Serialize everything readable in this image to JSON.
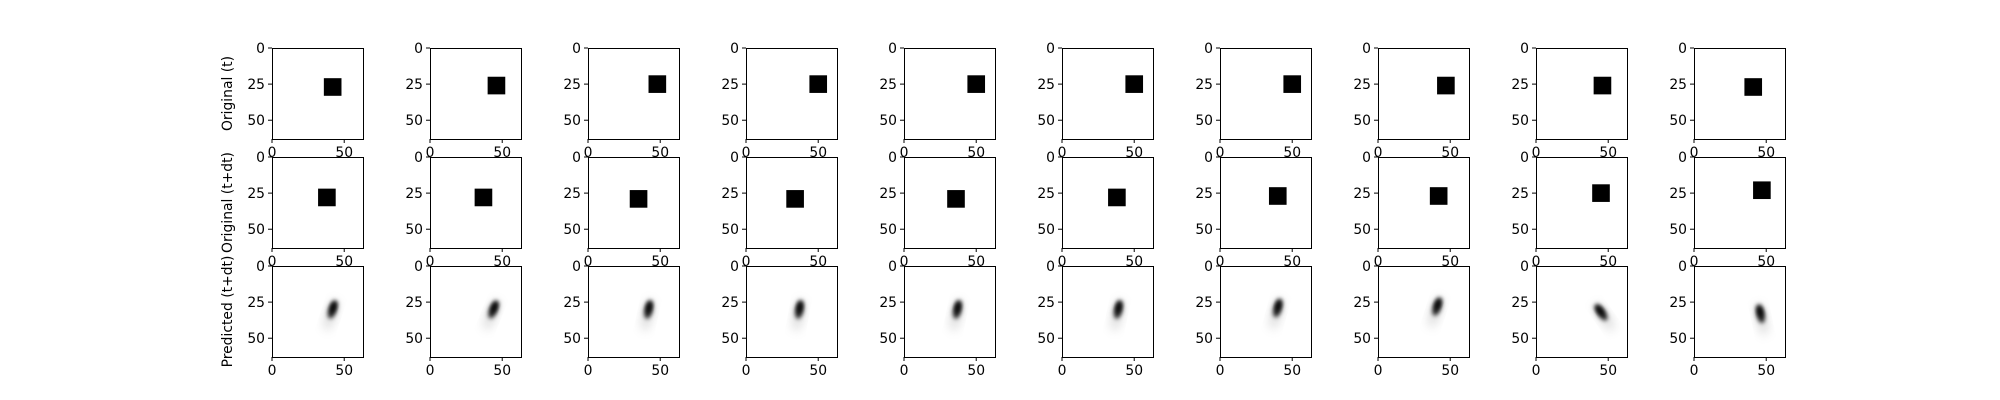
{
  "chart_data": {
    "type": "image-grid",
    "image_size": [
      64,
      64
    ],
    "colormap": "gray_r",
    "grid": false,
    "xlim": [
      0,
      63
    ],
    "ylim": [
      63,
      0
    ],
    "xticks": [
      0,
      50
    ],
    "yticks": [
      0,
      25,
      50
    ],
    "rows": [
      {
        "name": "Original (t)",
        "kind": "square",
        "frames": [
          {
            "x": 42,
            "y": 27
          },
          {
            "x": 46,
            "y": 26
          },
          {
            "x": 48,
            "y": 25
          },
          {
            "x": 50,
            "y": 25
          },
          {
            "x": 50,
            "y": 25
          },
          {
            "x": 50,
            "y": 25
          },
          {
            "x": 50,
            "y": 25
          },
          {
            "x": 47,
            "y": 26
          },
          {
            "x": 46,
            "y": 26
          },
          {
            "x": 41,
            "y": 27
          }
        ]
      },
      {
        "name": "Original (t+dt)",
        "kind": "square",
        "frames": [
          {
            "x": 38,
            "y": 28
          },
          {
            "x": 37,
            "y": 28
          },
          {
            "x": 35,
            "y": 29
          },
          {
            "x": 34,
            "y": 29
          },
          {
            "x": 36,
            "y": 29
          },
          {
            "x": 38,
            "y": 28
          },
          {
            "x": 40,
            "y": 27
          },
          {
            "x": 42,
            "y": 27
          },
          {
            "x": 45,
            "y": 25
          },
          {
            "x": 47,
            "y": 23
          }
        ]
      },
      {
        "name": "Predicted (t+dt)",
        "kind": "blur",
        "frames": [
          {
            "x": 42,
            "y": 30,
            "angle": 18
          },
          {
            "x": 44,
            "y": 30,
            "angle": 22
          },
          {
            "x": 42,
            "y": 30,
            "angle": 12
          },
          {
            "x": 37,
            "y": 30,
            "angle": 10
          },
          {
            "x": 37,
            "y": 30,
            "angle": 12
          },
          {
            "x": 39,
            "y": 30,
            "angle": 12
          },
          {
            "x": 40,
            "y": 29,
            "angle": 15
          },
          {
            "x": 41,
            "y": 28,
            "angle": 18
          },
          {
            "x": 45,
            "y": 32,
            "angle": -35
          },
          {
            "x": 46,
            "y": 33,
            "angle": -12
          }
        ]
      }
    ]
  }
}
